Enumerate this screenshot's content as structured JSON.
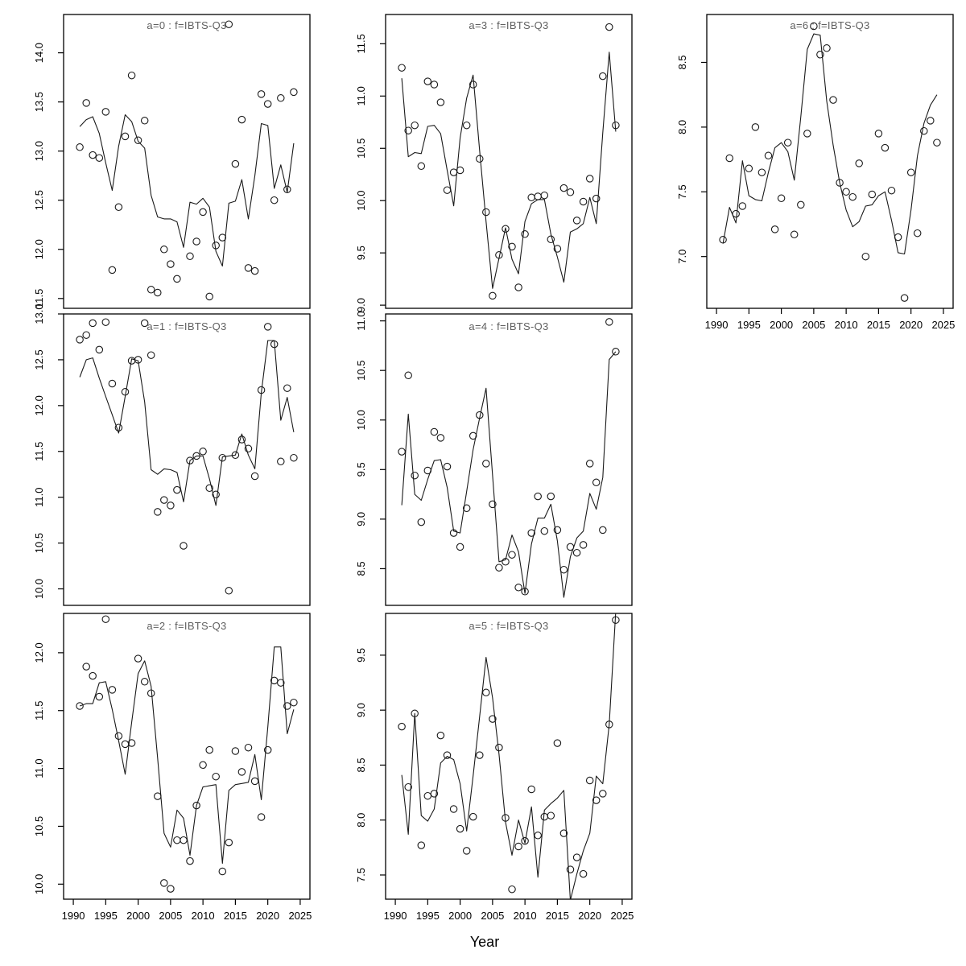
{
  "figure": {
    "xlabel": "Year",
    "point_style": "open-circle",
    "line_style": "solid",
    "background": "#ffffff",
    "colors": {
      "points": "#1a1a1a",
      "line": "#1a1a1a",
      "frame": "#000000",
      "title": "#606060",
      "tick_label": "#000000"
    },
    "xticks": [
      1990,
      1995,
      2000,
      2005,
      2010,
      2015,
      2020,
      2025
    ],
    "xlim": [
      1988.5,
      2026.5
    ],
    "years": [
      1991,
      1992,
      1993,
      1994,
      1995,
      1996,
      1997,
      1998,
      1999,
      2000,
      2001,
      2002,
      2003,
      2004,
      2005,
      2006,
      2007,
      2008,
      2009,
      2010,
      2011,
      2012,
      2013,
      2014,
      2015,
      2016,
      2017,
      2018,
      2019,
      2020,
      2021,
      2022,
      2023,
      2024
    ]
  },
  "chart_data": [
    {
      "id": "a0",
      "title": "a=0  :  f=IBTS-Q3",
      "type": "scatter",
      "row": 0,
      "col": 0,
      "ylim": [
        11.4,
        14.39
      ],
      "yticks": [
        11.5,
        12.0,
        12.5,
        13.0,
        13.5,
        14.0
      ],
      "x_axis_visible": false,
      "points": [
        13.04,
        13.49,
        12.96,
        12.93,
        13.4,
        11.79,
        12.43,
        13.15,
        13.77,
        13.11,
        13.31,
        11.59,
        11.56,
        12.0,
        11.85,
        11.7,
        null,
        11.93,
        12.08,
        12.38,
        11.52,
        12.04,
        12.12,
        14.29,
        12.87,
        13.32,
        11.81,
        11.78,
        13.58,
        13.48,
        12.5,
        13.54,
        12.61,
        13.6
      ],
      "line": [
        13.25,
        13.32,
        13.35,
        13.18,
        12.88,
        12.6,
        13.05,
        13.37,
        13.3,
        13.1,
        13.03,
        12.55,
        12.33,
        12.31,
        12.31,
        12.28,
        12.02,
        12.48,
        12.46,
        12.52,
        12.43,
        11.98,
        11.83,
        12.47,
        12.49,
        12.71,
        12.31,
        12.75,
        13.28,
        13.26,
        12.62,
        12.86,
        12.58,
        13.08
      ]
    },
    {
      "id": "a1",
      "title": "a=1  :  f=IBTS-Q3",
      "type": "scatter",
      "row": 1,
      "col": 0,
      "ylim": [
        9.82,
        13.0
      ],
      "yticks": [
        10.0,
        10.5,
        11.0,
        11.5,
        12.0,
        12.5,
        13.0
      ],
      "x_axis_visible": false,
      "points": [
        12.72,
        12.77,
        12.9,
        12.61,
        12.91,
        12.24,
        11.76,
        12.15,
        12.49,
        12.5,
        12.9,
        12.55,
        10.84,
        10.97,
        10.91,
        11.08,
        10.47,
        11.4,
        11.45,
        11.5,
        11.1,
        11.03,
        11.43,
        9.98,
        11.46,
        11.63,
        11.53,
        11.23,
        12.17,
        12.86,
        12.67,
        11.39,
        12.19,
        11.43
      ],
      "line": [
        12.31,
        12.5,
        12.52,
        12.3,
        12.1,
        11.9,
        11.7,
        12.1,
        12.51,
        12.49,
        12.04,
        11.3,
        11.25,
        11.31,
        11.3,
        11.27,
        10.95,
        11.4,
        11.45,
        11.45,
        11.2,
        10.91,
        11.44,
        11.45,
        11.46,
        11.69,
        11.46,
        11.31,
        12.14,
        12.71,
        12.71,
        11.84,
        12.09,
        11.71
      ]
    },
    {
      "id": "a2",
      "title": "a=2  :  f=IBTS-Q3",
      "type": "scatter",
      "row": 2,
      "col": 0,
      "ylim": [
        9.87,
        12.34
      ],
      "yticks": [
        10.0,
        10.5,
        11.0,
        11.5,
        12.0
      ],
      "x_axis_visible": true,
      "points": [
        11.54,
        11.88,
        11.8,
        11.62,
        12.29,
        11.68,
        11.28,
        11.21,
        11.22,
        11.95,
        11.75,
        11.65,
        10.76,
        10.01,
        9.96,
        10.38,
        10.38,
        10.2,
        10.68,
        11.03,
        11.16,
        10.93,
        10.11,
        10.36,
        11.15,
        10.97,
        11.18,
        10.89,
        10.58,
        11.16,
        11.76,
        11.74,
        11.54,
        11.57
      ],
      "line": [
        11.54,
        11.56,
        11.56,
        11.74,
        11.75,
        11.51,
        11.24,
        10.95,
        11.4,
        11.82,
        11.93,
        11.71,
        11.09,
        10.44,
        10.32,
        10.64,
        10.57,
        10.25,
        10.68,
        10.84,
        10.85,
        10.86,
        10.18,
        10.81,
        10.86,
        10.87,
        10.88,
        11.12,
        10.73,
        11.36,
        12.05,
        12.05,
        11.3,
        11.51
      ]
    },
    {
      "id": "a3",
      "title": "a=3  :  f=IBTS-Q3",
      "type": "scatter",
      "row": 0,
      "col": 1,
      "ylim": [
        8.97,
        11.78
      ],
      "yticks": [
        9.0,
        9.5,
        10.0,
        10.5,
        11.0,
        11.5
      ],
      "x_axis_visible": false,
      "points": [
        11.27,
        10.67,
        10.72,
        10.33,
        11.14,
        11.11,
        10.94,
        10.1,
        10.27,
        10.29,
        10.72,
        11.11,
        10.4,
        9.89,
        9.09,
        9.48,
        9.73,
        9.56,
        9.17,
        9.68,
        10.03,
        10.04,
        10.05,
        9.63,
        9.54,
        10.12,
        10.08,
        9.81,
        9.99,
        10.21,
        10.02,
        11.19,
        11.66,
        10.72
      ],
      "line": [
        11.17,
        10.42,
        10.46,
        10.45,
        10.71,
        10.72,
        10.64,
        10.29,
        9.95,
        10.6,
        10.98,
        11.2,
        10.48,
        9.8,
        9.16,
        9.45,
        9.74,
        9.44,
        9.3,
        9.8,
        9.97,
        10.01,
        10.01,
        9.68,
        9.46,
        9.22,
        9.7,
        9.73,
        9.78,
        10.03,
        9.78,
        10.65,
        11.42,
        10.66
      ]
    },
    {
      "id": "a4",
      "title": "a=4  :  f=IBTS-Q3",
      "type": "scatter",
      "row": 1,
      "col": 1,
      "ylim": [
        8.13,
        11.07
      ],
      "yticks": [
        8.5,
        9.0,
        9.5,
        10.0,
        10.5,
        11.0
      ],
      "x_axis_visible": false,
      "points": [
        9.68,
        10.45,
        9.44,
        8.97,
        9.49,
        9.88,
        9.82,
        9.53,
        8.86,
        8.72,
        9.11,
        9.84,
        10.05,
        9.56,
        9.15,
        8.51,
        8.57,
        8.64,
        8.31,
        8.27,
        8.86,
        9.23,
        8.88,
        9.23,
        8.89,
        8.49,
        8.72,
        8.66,
        8.74,
        9.56,
        9.37,
        8.89,
        10.99,
        10.69
      ],
      "line": [
        9.14,
        10.06,
        9.25,
        9.19,
        9.4,
        9.59,
        9.6,
        9.32,
        8.88,
        8.86,
        9.28,
        9.7,
        10.02,
        10.32,
        9.44,
        8.57,
        8.59,
        8.84,
        8.67,
        8.25,
        8.75,
        9.01,
        9.01,
        9.15,
        8.78,
        8.21,
        8.62,
        8.81,
        8.88,
        9.26,
        9.1,
        9.42,
        10.61,
        10.69
      ]
    },
    {
      "id": "a5",
      "title": "a=5  :  f=IBTS-Q3",
      "type": "scatter",
      "row": 2,
      "col": 1,
      "ylim": [
        7.28,
        9.88
      ],
      "yticks": [
        7.5,
        8.0,
        8.5,
        9.0,
        9.5
      ],
      "x_axis_visible": true,
      "points": [
        8.85,
        8.3,
        8.97,
        7.77,
        8.22,
        8.24,
        8.77,
        8.59,
        8.1,
        7.92,
        7.72,
        8.03,
        8.59,
        9.16,
        8.92,
        8.66,
        8.02,
        7.37,
        7.76,
        7.81,
        8.28,
        7.86,
        8.03,
        8.04,
        8.7,
        7.88,
        7.55,
        7.66,
        7.51,
        8.36,
        8.18,
        8.24,
        8.87,
        9.82
      ],
      "line": [
        8.41,
        7.87,
        8.97,
        8.04,
        7.99,
        8.1,
        8.52,
        8.58,
        8.55,
        8.33,
        7.9,
        8.4,
        8.94,
        9.48,
        9.11,
        8.6,
        7.98,
        7.68,
        8.0,
        7.79,
        8.12,
        7.48,
        8.09,
        8.15,
        8.2,
        8.27,
        7.27,
        7.51,
        7.72,
        7.88,
        8.4,
        8.33,
        8.87,
        9.9
      ]
    },
    {
      "id": "a6",
      "title": "a=6  :  f=IBTS-Q3",
      "type": "scatter",
      "row": 0,
      "col": 2,
      "ylim": [
        6.6,
        8.87
      ],
      "yticks": [
        7.0,
        7.5,
        8.0,
        8.5
      ],
      "x_axis_visible": true,
      "points": [
        7.13,
        7.76,
        7.33,
        7.39,
        7.68,
        8.0,
        7.65,
        7.78,
        7.21,
        7.45,
        7.88,
        7.17,
        7.4,
        7.95,
        8.78,
        8.56,
        8.61,
        8.21,
        7.57,
        7.5,
        7.46,
        7.72,
        7.0,
        7.48,
        7.95,
        7.84,
        7.51,
        7.15,
        6.68,
        7.65,
        7.18,
        7.97,
        8.05,
        7.88
      ],
      "line": [
        7.1,
        7.38,
        7.26,
        7.74,
        7.47,
        7.44,
        7.43,
        7.65,
        7.84,
        7.88,
        7.81,
        7.59,
        8.08,
        8.6,
        8.72,
        8.71,
        8.2,
        7.86,
        7.57,
        7.36,
        7.23,
        7.27,
        7.39,
        7.4,
        7.47,
        7.5,
        7.28,
        7.03,
        7.02,
        7.36,
        7.78,
        8.03,
        8.17,
        8.25
      ]
    }
  ]
}
